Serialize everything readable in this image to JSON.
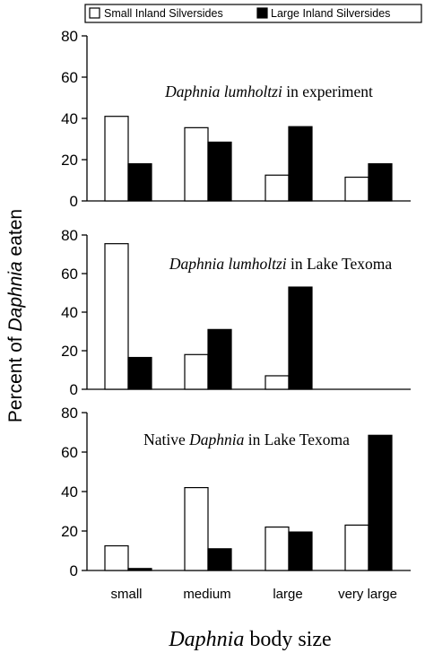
{
  "legend": {
    "placement": "top",
    "items": [
      {
        "label": "Small Inland Silversides",
        "fill": "#ffffff"
      },
      {
        "label": "Large Inland Silversides",
        "fill": "#000000"
      }
    ]
  },
  "ylabel": {
    "prefix": "Percent of ",
    "italic": "Daphnia",
    "suffix": " eaten"
  },
  "xlabel": {
    "italic": "Daphnia",
    "suffix": " body size"
  },
  "categories": [
    "small",
    "medium",
    "large",
    "very large"
  ],
  "chart_data": [
    {
      "type": "bar",
      "title": {
        "italic": "Daphnia lumholtzi",
        "rest": " in experiment"
      },
      "categories": [
        "small",
        "medium",
        "large",
        "very large"
      ],
      "ylim": [
        0,
        80
      ],
      "yticks": [
        0,
        20,
        40,
        60,
        80
      ],
      "grid": false,
      "series": [
        {
          "name": "Small Inland Silversides",
          "values": [
            41,
            35.5,
            12.5,
            11.5
          ]
        },
        {
          "name": "Large Inland Silversides",
          "values": [
            18,
            28.5,
            36,
            18
          ]
        }
      ]
    },
    {
      "type": "bar",
      "title": {
        "italic": "Daphnia lumholtzi",
        "rest": " in Lake Texoma"
      },
      "categories": [
        "small",
        "medium",
        "large",
        "very large"
      ],
      "ylim": [
        0,
        80
      ],
      "yticks": [
        0,
        20,
        40,
        60,
        80
      ],
      "grid": false,
      "series": [
        {
          "name": "Small Inland Silversides",
          "values": [
            75.5,
            18,
            7,
            0
          ]
        },
        {
          "name": "Large Inland Silversides",
          "values": [
            16.5,
            31,
            53,
            0
          ]
        }
      ]
    },
    {
      "type": "bar",
      "title": {
        "prefix": "Native ",
        "italic": "Daphnia",
        "rest": " in Lake Texoma"
      },
      "categories": [
        "small",
        "medium",
        "large",
        "very large"
      ],
      "ylim": [
        0,
        80
      ],
      "yticks": [
        0,
        20,
        40,
        60,
        80
      ],
      "grid": false,
      "series": [
        {
          "name": "Small Inland Silversides",
          "values": [
            12.5,
            42,
            22,
            23
          ]
        },
        {
          "name": "Large Inland Silversides",
          "values": [
            1,
            11,
            19.5,
            68.5
          ]
        }
      ]
    }
  ]
}
